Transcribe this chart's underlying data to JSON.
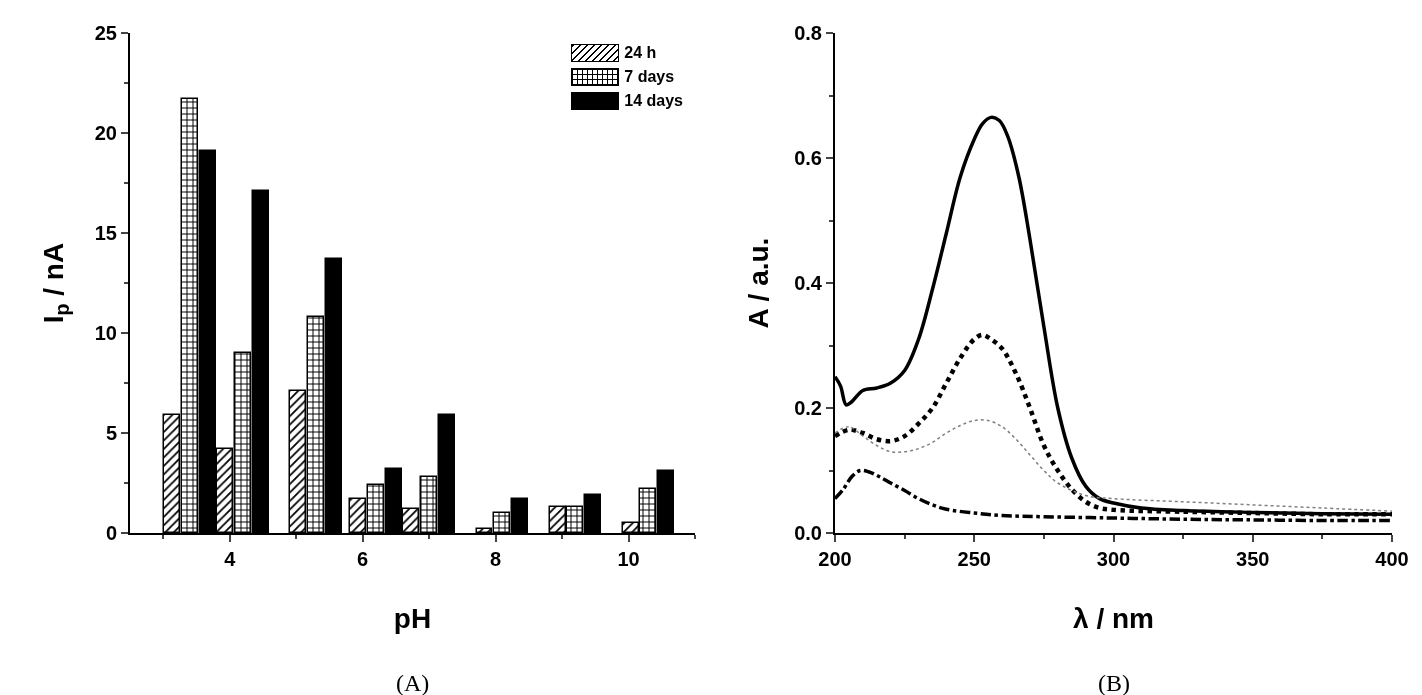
{
  "chart_data": [
    {
      "type": "bar",
      "xlabel": "pH",
      "ylabel": "I$_{p}$ / nA",
      "x": [
        3.4,
        4.2,
        5.3,
        6.2,
        7.0,
        8.1,
        9.2,
        10.3
      ],
      "series": [
        {
          "name": "24 h",
          "color": "#000000",
          "values": [
            5.9,
            4.2,
            7.1,
            1.7,
            1.2,
            0.2,
            1.3,
            0.5
          ]
        },
        {
          "name": "7 days",
          "color": "#000000",
          "values": [
            21.7,
            9.0,
            10.8,
            2.4,
            2.8,
            1.0,
            1.3,
            2.2
          ]
        },
        {
          "name": "14 days",
          "color": "#000000",
          "values": [
            19.1,
            17.1,
            13.7,
            3.2,
            5.9,
            1.7,
            1.9,
            3.1
          ]
        }
      ],
      "xlim": [
        2.5,
        11
      ],
      "xticks": [
        4,
        6,
        8,
        10
      ],
      "ylim": [
        0,
        25
      ],
      "yticks": [
        0,
        5,
        10,
        15,
        20,
        25
      ],
      "grid": false,
      "legend": "top right",
      "annotations": [
        "(A)"
      ]
    },
    {
      "type": "line",
      "xlabel": "λ / nm",
      "ylabel": "A / a.u.",
      "series": [
        {
          "color": "#000000",
          "line_style": "solid",
          "x": [
            200,
            202,
            204,
            206,
            210,
            215,
            220,
            225,
            230,
            235,
            240,
            245,
            250,
            253,
            256,
            259,
            262,
            266,
            270,
            275,
            280,
            285,
            290,
            295,
            300,
            310,
            325,
            350,
            375,
            400
          ],
          "values": [
            0.25,
            0.235,
            0.205,
            0.21,
            0.228,
            0.232,
            0.24,
            0.26,
            0.31,
            0.39,
            0.48,
            0.57,
            0.63,
            0.655,
            0.665,
            0.66,
            0.635,
            0.57,
            0.47,
            0.33,
            0.2,
            0.12,
            0.075,
            0.055,
            0.048,
            0.04,
            0.036,
            0.033,
            0.031,
            0.03
          ]
        },
        {
          "color": "#000000",
          "line_style": "dotted",
          "x": [
            200,
            205,
            210,
            215,
            220,
            225,
            230,
            235,
            240,
            245,
            250,
            253,
            256,
            260,
            265,
            270,
            275,
            280,
            285,
            290,
            295,
            300,
            325,
            350,
            375,
            400
          ],
          "values": [
            0.155,
            0.165,
            0.16,
            0.15,
            0.147,
            0.155,
            0.175,
            0.2,
            0.24,
            0.28,
            0.31,
            0.317,
            0.31,
            0.295,
            0.255,
            0.2,
            0.14,
            0.1,
            0.07,
            0.05,
            0.04,
            0.037,
            0.034,
            0.032,
            0.03,
            0.03
          ]
        },
        {
          "color": "#808080",
          "line_style": "dotted",
          "x": [
            200,
            205,
            210,
            215,
            220,
            225,
            230,
            235,
            240,
            245,
            250,
            255,
            260,
            265,
            270,
            275,
            280,
            290,
            300,
            325,
            350,
            375,
            400
          ],
          "values": [
            0.16,
            0.17,
            0.155,
            0.14,
            0.13,
            0.13,
            0.135,
            0.145,
            0.16,
            0.172,
            0.18,
            0.18,
            0.17,
            0.15,
            0.125,
            0.1,
            0.08,
            0.06,
            0.055,
            0.05,
            0.045,
            0.04,
            0.035
          ]
        },
        {
          "color": "#000000",
          "line_style": "dashdot",
          "x": [
            200,
            203,
            206,
            209,
            212,
            216,
            220,
            225,
            230,
            235,
            240,
            250,
            260,
            275,
            300,
            325,
            350,
            375,
            400
          ],
          "values": [
            0.055,
            0.07,
            0.09,
            0.1,
            0.098,
            0.09,
            0.08,
            0.068,
            0.055,
            0.045,
            0.038,
            0.032,
            0.028,
            0.026,
            0.024,
            0.022,
            0.021,
            0.02,
            0.02
          ]
        }
      ],
      "xlim": [
        200,
        400
      ],
      "xticks": [
        200,
        250,
        300,
        350,
        400
      ],
      "ylim": [
        0,
        0.8
      ],
      "yticks": [
        {
          "value": 0,
          "label": "0.0"
        },
        0.2,
        0.4,
        0.6,
        0.8
      ],
      "grid": false,
      "legend": false,
      "annotations": [
        "(B)"
      ]
    }
  ]
}
